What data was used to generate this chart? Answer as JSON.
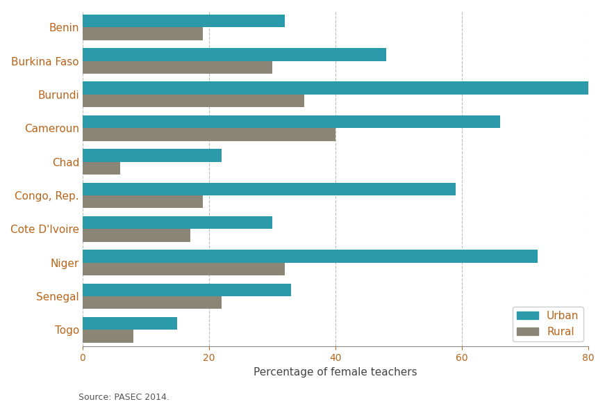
{
  "countries": [
    "Benin",
    "Burkina Faso",
    "Burundi",
    "Cameroun",
    "Chad",
    "Congo, Rep.",
    "Cote D'Ivoire",
    "Niger",
    "Senegal",
    "Togo"
  ],
  "urban": [
    32,
    48,
    80,
    66,
    22,
    59,
    30,
    72,
    33,
    15
  ],
  "rural": [
    19,
    30,
    35,
    40,
    6,
    19,
    17,
    32,
    22,
    8
  ],
  "urban_color": "#2a9aaa",
  "rural_color": "#8b8575",
  "xlabel": "Percentage of female teachers",
  "legend_labels": [
    "Urban",
    "Rural"
  ],
  "legend_text_color": "#b8651a",
  "xlim": [
    0,
    80
  ],
  "xticks": [
    0,
    20,
    40,
    60,
    80
  ],
  "source_text": "Source: PASEC 2014.",
  "background_color": "#ffffff",
  "bar_height": 0.38,
  "label_fontsize": 11,
  "tick_fontsize": 10,
  "ytick_color": "#b8651a",
  "spine_color": "#888888"
}
